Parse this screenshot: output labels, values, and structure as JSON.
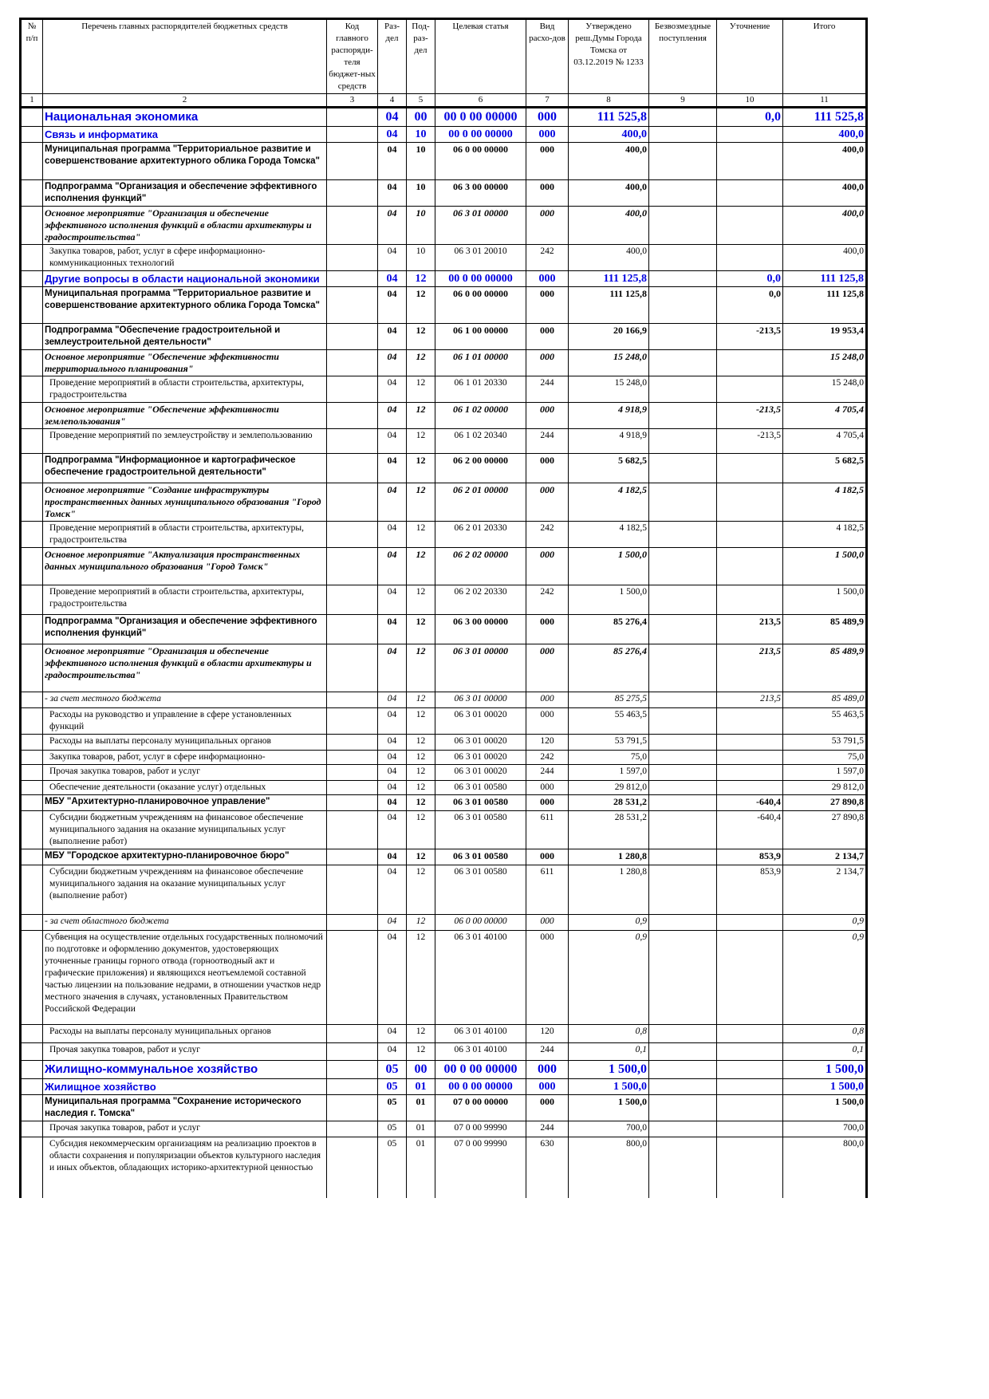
{
  "header": {
    "columns": [
      "№ п/п",
      "Перечень главных распорядителей бюджетных средств",
      "Код главного распоряди-теля бюджет-ных средств",
      "Раз-дел",
      "Под-раз-дел",
      "Целевая статья",
      "Вид расхо-дов",
      "Утверждено реш.Думы Города Томска от 03.12.2019 № 1233",
      "Безвозмездные поступления",
      "Уточнение",
      "Итого"
    ],
    "numbers": [
      "1",
      "2",
      "3",
      "4",
      "5",
      "6",
      "7",
      "8",
      "9",
      "10",
      "11"
    ]
  },
  "rows": [
    {
      "style": "blue1",
      "name": "Национальная экономика",
      "rz": "04",
      "prz": "00",
      "cs": "00 0 00 00000",
      "vr": "000",
      "approved": "111 525,8",
      "free": "",
      "adjust": "0,0",
      "total": "111 525,8"
    },
    {
      "style": "blue2",
      "name": "Связь и информатика",
      "rz": "04",
      "prz": "10",
      "cs": "00 0 00 00000",
      "vr": "000",
      "approved": "400,0",
      "free": "",
      "adjust": "",
      "total": "400,0"
    },
    {
      "style": "bold",
      "name": "Муниципальная программа \"Территориальное развитие и совершенствование архитектурного облика Города Томска\"",
      "rz": "04",
      "prz": "10",
      "cs": "06 0 00 00000",
      "vr": "000",
      "approved": "400,0",
      "free": "",
      "adjust": "",
      "total": "400,0"
    },
    {
      "style": "bold",
      "name": "Подпрограмма \"Организация и обеспечение эффективного исполнения функций\"",
      "rz": "04",
      "prz": "10",
      "cs": "06 3 00 00000",
      "vr": "000",
      "approved": "400,0",
      "free": "",
      "adjust": "",
      "total": "400,0"
    },
    {
      "style": "bi",
      "name": "Основное мероприятие \"Организация и обеспечение эффективного исполнения функций в области архитектуры и градостроительства\"",
      "rz": "04",
      "prz": "10",
      "cs": "06 3 01 00000",
      "vr": "000",
      "approved": "400,0",
      "free": "",
      "adjust": "",
      "total": "400,0"
    },
    {
      "style": "normal",
      "name": "Закупка товаров, работ, услуг в сфере информационно-коммуникационных технологий",
      "rz": "04",
      "prz": "10",
      "cs": "06 3 01 20010",
      "vr": "242",
      "approved": "400,0",
      "free": "",
      "adjust": "",
      "total": "400,0"
    },
    {
      "style": "blue2",
      "name": "Другие вопросы в области национальной экономики",
      "rz": "04",
      "prz": "12",
      "cs": "00 0 00 00000",
      "vr": "000",
      "approved": "111 125,8",
      "free": "",
      "adjust": "0,0",
      "total": "111 125,8"
    },
    {
      "style": "bold",
      "name": "Муниципальная программа \"Территориальное развитие и совершенствование архитектурного облика Города Томска\"",
      "rz": "04",
      "prz": "12",
      "cs": "06 0 00 00000",
      "vr": "000",
      "approved": "111 125,8",
      "free": "",
      "adjust": "0,0",
      "total": "111 125,8"
    },
    {
      "style": "bold",
      "name": "Подпрограмма \"Обеспечение градостроительной и землеустроительной деятельности\"",
      "rz": "04",
      "prz": "12",
      "cs": "06 1 00 00000",
      "vr": "000",
      "approved": "20 166,9",
      "free": "",
      "adjust": "-213,5",
      "total": "19 953,4"
    },
    {
      "style": "bi",
      "name": "Основное мероприятие \"Обеспечение эффективности территориального планирования\"",
      "rz": "04",
      "prz": "12",
      "cs": "06 1 01 00000",
      "vr": "000",
      "approved": "15 248,0",
      "free": "",
      "adjust": "",
      "total": "15 248,0"
    },
    {
      "style": "normal",
      "name": "Проведение мероприятий в области строительства, архитектуры, градостроительства",
      "rz": "04",
      "prz": "12",
      "cs": "06 1 01 20330",
      "vr": "244",
      "approved": "15 248,0",
      "free": "",
      "adjust": "",
      "total": "15 248,0"
    },
    {
      "style": "bi",
      "name": "Основное мероприятие \"Обеспечение эффективности землепользования\"",
      "rz": "04",
      "prz": "12",
      "cs": "06 1 02 00000",
      "vr": "000",
      "approved": "4 918,9",
      "free": "",
      "adjust": "-213,5",
      "total": "4 705,4"
    },
    {
      "style": "normal",
      "name": "Проведение мероприятий по землеустройству и землепользованию",
      "rz": "04",
      "prz": "12",
      "cs": "06 1 02 20340",
      "vr": "244",
      "approved": "4 918,9",
      "free": "",
      "adjust": "-213,5",
      "total": "4 705,4"
    },
    {
      "style": "bold",
      "name": "Подпрограмма \"Информационное и картографическое обеспечение градостроительной деятельности\"",
      "rz": "04",
      "prz": "12",
      "cs": "06 2 00 00000",
      "vr": "000",
      "approved": "5 682,5",
      "free": "",
      "adjust": "",
      "total": "5 682,5"
    },
    {
      "style": "bi",
      "name": "Основное мероприятие \"Создание инфраструктуры пространственных данных муниципального образования \"Город Томск\"",
      "rz": "04",
      "prz": "12",
      "cs": "06 2 01 00000",
      "vr": "000",
      "approved": "4 182,5",
      "free": "",
      "adjust": "",
      "total": "4 182,5"
    },
    {
      "style": "normal",
      "name": "Проведение мероприятий в области строительства, архитектуры, градостроительства",
      "rz": "04",
      "prz": "12",
      "cs": "06 2 01 20330",
      "vr": "242",
      "approved": "4 182,5",
      "free": "",
      "adjust": "",
      "total": "4 182,5"
    },
    {
      "style": "bi",
      "name": "Основное мероприятие \"Актуализация пространственных данных муниципального образования \"Город Томск\"",
      "rz": "04",
      "prz": "12",
      "cs": "06 2 02 00000",
      "vr": "000",
      "approved": "1 500,0",
      "free": "",
      "adjust": "",
      "total": "1 500,0"
    },
    {
      "style": "normal",
      "name": "Проведение мероприятий в области строительства, архитектуры, градостроительства",
      "rz": "04",
      "prz": "12",
      "cs": "06 2 02 20330",
      "vr": "242",
      "approved": "1 500,0",
      "free": "",
      "adjust": "",
      "total": "1 500,0"
    },
    {
      "style": "bold",
      "name": "Подпрограмма \"Организация и обеспечение эффективного исполнения функций\"",
      "rz": "04",
      "prz": "12",
      "cs": "06 3 00 00000",
      "vr": "000",
      "approved": "85 276,4",
      "free": "",
      "adjust": "213,5",
      "total": "85 489,9"
    },
    {
      "style": "bi",
      "name": "Основное мероприятие \"Организация и обеспечение эффективного исполнения функций в области архитектуры и градостроительства\"",
      "rz": "04",
      "prz": "12",
      "cs": "06 3 01 00000",
      "vr": "000",
      "approved": "85 276,4",
      "free": "",
      "adjust": "213,5",
      "total": "85 489,9"
    },
    {
      "style": "it",
      "name": "- за счет местного бюджета",
      "rz": "04",
      "prz": "12",
      "cs": "06 3 01 00000",
      "vr": "000",
      "approved": "85 275,5",
      "free": "",
      "adjust": "213,5",
      "total": "85 489,0"
    },
    {
      "style": "normal",
      "name": "Расходы на руководство и управление в сфере установленных функций",
      "rz": "04",
      "prz": "12",
      "cs": "06 3 01 00020",
      "vr": "000",
      "approved": "55 463,5",
      "free": "",
      "adjust": "",
      "total": "55 463,5"
    },
    {
      "style": "normal",
      "name": "Расходы на выплаты персоналу муниципальных органов",
      "rz": "04",
      "prz": "12",
      "cs": "06 3 01 00020",
      "vr": "120",
      "approved": "53 791,5",
      "free": "",
      "adjust": "",
      "total": "53 791,5"
    },
    {
      "style": "normal",
      "name": "Закупка товаров, работ, услуг в сфере информационно-",
      "rz": "04",
      "prz": "12",
      "cs": "06 3 01 00020",
      "vr": "242",
      "approved": "75,0",
      "free": "",
      "adjust": "",
      "total": "75,0"
    },
    {
      "style": "normal",
      "name": "Прочая закупка товаров, работ и услуг",
      "rz": "04",
      "prz": "12",
      "cs": "06 3 01 00020",
      "vr": "244",
      "approved": "1 597,0",
      "free": "",
      "adjust": "",
      "total": "1 597,0"
    },
    {
      "style": "normal",
      "name": "Обеспечение деятельности (оказание услуг) отдельных",
      "rz": "04",
      "prz": "12",
      "cs": "06 3 01 00580",
      "vr": "000",
      "approved": "29 812,0",
      "free": "",
      "adjust": "",
      "total": "29 812,0"
    },
    {
      "style": "bold",
      "name": "МБУ \"Архитектурно-планировочное управление\"",
      "rz": "04",
      "prz": "12",
      "cs": "06 3 01 00580",
      "vr": "000",
      "approved": "28 531,2",
      "free": "",
      "adjust": "-640,4",
      "total": "27 890,8"
    },
    {
      "style": "normal",
      "name": "Субсидии бюджетным учреждениям на финансовое обеспечение муниципального задания на оказание муниципальных услуг (выполнение работ)",
      "rz": "04",
      "prz": "12",
      "cs": "06 3 01 00580",
      "vr": "611",
      "approved": "28 531,2",
      "free": "",
      "adjust": "-640,4",
      "total": "27 890,8"
    },
    {
      "style": "bold",
      "name": "МБУ \"Городское архитектурно-планировочное бюро\"",
      "rz": "04",
      "prz": "12",
      "cs": "06 3 01 00580",
      "vr": "000",
      "approved": "1 280,8",
      "free": "",
      "adjust": "853,9",
      "total": "2 134,7"
    },
    {
      "style": "normal",
      "name": "Субсидии бюджетным учреждениям на финансовое обеспечение муниципального задания на оказание муниципальных услуг (выполнение работ)",
      "rz": "04",
      "prz": "12",
      "cs": "06 3 01 00580",
      "vr": "611",
      "approved": "1 280,8",
      "free": "",
      "adjust": "853,9",
      "total": "2 134,7"
    },
    {
      "style": "it",
      "name": "- за счет областного бюджета",
      "rz": "04",
      "prz": "12",
      "cs": "06 0 00 00000",
      "vr": "000",
      "approved": "0,9",
      "free": "",
      "adjust": "",
      "total": "0,9"
    },
    {
      "style": "itval",
      "name": "Субвенция на осуществление отдельных государственных полномочий по подготовке и оформлению документов, удостоверяющих уточненные границы горного отвода (горноотводный акт и графические приложения) и являющихся неотъемлемой составной частью лицензии на пользование недрами, в отношении участков недр местного значения в случаях, установленных Правительством Российской Федерации",
      "rz": "04",
      "prz": "12",
      "cs": "06 3 01 40100",
      "vr": "000",
      "approved": "0,9",
      "free": "",
      "adjust": "",
      "total": "0,9"
    },
    {
      "style": "itval normal",
      "name": "Расходы на выплаты персоналу муниципальных органов",
      "rz": "04",
      "prz": "12",
      "cs": "06 3 01 40100",
      "vr": "120",
      "approved": "0,8",
      "free": "",
      "adjust": "",
      "total": "0,8"
    },
    {
      "style": "itval normal",
      "name": "Прочая закупка товаров, работ и услуг",
      "rz": "04",
      "prz": "12",
      "cs": "06 3 01 40100",
      "vr": "244",
      "approved": "0,1",
      "free": "",
      "adjust": "",
      "total": "0,1"
    },
    {
      "style": "blue1",
      "name": "Жилищно-коммунальное хозяйство",
      "rz": "05",
      "prz": "00",
      "cs": "00 0 00 00000",
      "vr": "000",
      "approved": "1 500,0",
      "free": "",
      "adjust": "",
      "total": "1 500,0"
    },
    {
      "style": "blue2",
      "name": "Жилищное хозяйство",
      "rz": "05",
      "prz": "01",
      "cs": "00 0 00 00000",
      "vr": "000",
      "approved": "1 500,0",
      "free": "",
      "adjust": "",
      "total": "1 500,0"
    },
    {
      "style": "bold",
      "name": "Муниципальная программа \"Сохранение исторического наследия г. Томска\"",
      "rz": "05",
      "prz": "01",
      "cs": "07 0 00 00000",
      "vr": "000",
      "approved": "1 500,0",
      "free": "",
      "adjust": "",
      "total": "1 500,0"
    },
    {
      "style": "normal",
      "name": "Прочая закупка товаров, работ и услуг",
      "rz": "05",
      "prz": "01",
      "cs": "07 0 00 99990",
      "vr": "244",
      "approved": "700,0",
      "free": "",
      "adjust": "",
      "total": "700,0"
    },
    {
      "style": "normal",
      "name": "Субсидия некоммерческим организациям на реализацию проектов в области сохранения и популяризации объектов культурного наследия и иных объектов, обладающих историко-архитектурной ценностью",
      "rz": "05",
      "prz": "01",
      "cs": "07 0 00 99990",
      "vr": "630",
      "approved": "800,0",
      "free": "",
      "adjust": "",
      "total": "800,0"
    }
  ]
}
